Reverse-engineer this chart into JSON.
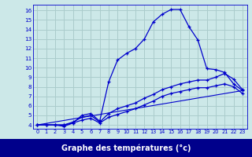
{
  "xlabel": "Graphe des températures (°c)",
  "bg_color": "#cce8e8",
  "label_bg_color": "#00008b",
  "label_text_color": "#ffffff",
  "grid_color": "#aacccc",
  "line_color": "#0000cc",
  "x_ticks": [
    0,
    1,
    2,
    3,
    4,
    5,
    6,
    7,
    8,
    9,
    10,
    11,
    12,
    13,
    14,
    15,
    16,
    17,
    18,
    19,
    20,
    21,
    22,
    23
  ],
  "y_ticks": [
    4,
    5,
    6,
    7,
    8,
    9,
    10,
    11,
    12,
    13,
    14,
    15,
    16
  ],
  "ylim": [
    3.6,
    16.6
  ],
  "xlim": [
    -0.5,
    23.5
  ],
  "series1_x": [
    0,
    1,
    2,
    3,
    4,
    5,
    6,
    7,
    8,
    9,
    10,
    11,
    12,
    13,
    14,
    15,
    16,
    17,
    18,
    19,
    20,
    21,
    22,
    23
  ],
  "series1_y": [
    4.0,
    4.0,
    4.0,
    3.85,
    4.2,
    5.0,
    5.2,
    4.4,
    8.5,
    10.8,
    11.5,
    12.0,
    13.0,
    14.8,
    15.6,
    16.1,
    16.1,
    14.3,
    12.9,
    9.9,
    9.8,
    9.5,
    8.3,
    7.6
  ],
  "series2_x": [
    0,
    1,
    2,
    3,
    4,
    5,
    6,
    7,
    8,
    9,
    10,
    11,
    12,
    13,
    14,
    15,
    16,
    17,
    18,
    19,
    20,
    21,
    22,
    23
  ],
  "series2_y": [
    4.0,
    4.0,
    4.0,
    4.0,
    4.3,
    4.8,
    5.0,
    4.3,
    5.2,
    5.7,
    6.0,
    6.3,
    6.8,
    7.2,
    7.7,
    8.0,
    8.3,
    8.5,
    8.7,
    8.7,
    9.0,
    9.4,
    8.8,
    7.7
  ],
  "series3_x": [
    0,
    23
  ],
  "series3_y": [
    4.0,
    7.6
  ],
  "series4_x": [
    0,
    1,
    2,
    3,
    4,
    5,
    6,
    7,
    8,
    9,
    10,
    11,
    12,
    13,
    14,
    15,
    16,
    17,
    18,
    19,
    20,
    21,
    22,
    23
  ],
  "series4_y": [
    4.0,
    4.0,
    4.0,
    4.0,
    4.2,
    4.5,
    4.7,
    4.2,
    4.8,
    5.1,
    5.4,
    5.7,
    6.1,
    6.5,
    7.0,
    7.3,
    7.5,
    7.7,
    7.9,
    7.9,
    8.1,
    8.3,
    8.0,
    7.3
  ]
}
